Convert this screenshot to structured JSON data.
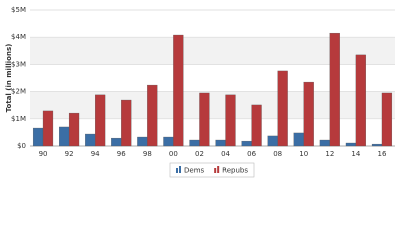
{
  "chart_data": {
    "type": "bar",
    "y_label": "Total (in millions)",
    "categories": [
      "90",
      "92",
      "94",
      "96",
      "98",
      "00",
      "02",
      "04",
      "06",
      "08",
      "10",
      "12",
      "14",
      "16"
    ],
    "series": [
      {
        "name": "Dems",
        "color": "#3b6ea5",
        "values": [
          660000,
          700000,
          440000,
          290000,
          330000,
          330000,
          220000,
          220000,
          180000,
          370000,
          480000,
          220000,
          110000,
          70000
        ]
      },
      {
        "name": "Repubs",
        "color": "#b63a3c",
        "values": [
          1290000,
          1210000,
          1880000,
          1690000,
          2240000,
          4080000,
          1950000,
          1880000,
          1510000,
          2760000,
          2350000,
          4150000,
          3350000,
          1950000
        ]
      }
    ],
    "ylim": [
      0,
      5000000
    ],
    "yticks": [
      {
        "value": 0,
        "label": "$0"
      },
      {
        "value": 1000000,
        "label": "$1M"
      },
      {
        "value": 2000000,
        "label": "$2M"
      },
      {
        "value": 3000000,
        "label": "$3M"
      },
      {
        "value": 4000000,
        "label": "$4M"
      },
      {
        "value": 5000000,
        "label": "$5M"
      }
    ],
    "grid": true,
    "legend": "bottom"
  }
}
